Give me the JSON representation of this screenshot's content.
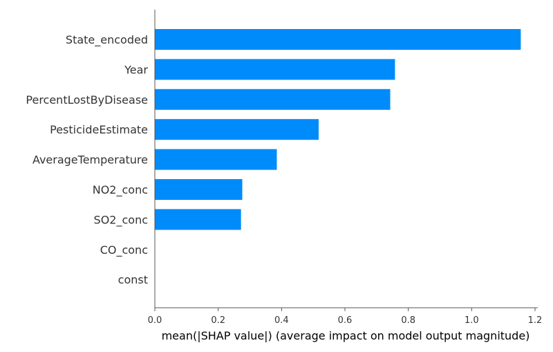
{
  "chart_data": {
    "type": "bar",
    "orientation": "horizontal",
    "title": "",
    "xlabel": "mean(|SHAP value|) (average impact on model output magnitude)",
    "ylabel": "",
    "xlim": [
      0,
      1.2
    ],
    "xticks": [
      "0.0",
      "0.2",
      "0.4",
      "0.6",
      "0.8",
      "1.0",
      "1.2"
    ],
    "categories": [
      "State_encoded",
      "Year",
      "PercentLostByDisease",
      "PesticideEstimate",
      "AverageTemperature",
      "NO2_conc",
      "SO2_conc",
      "CO_conc",
      "const"
    ],
    "values": [
      1.155,
      0.758,
      0.743,
      0.517,
      0.385,
      0.276,
      0.272,
      0.0,
      0.0
    ],
    "bar_color": "#008bfb",
    "grid": false,
    "legend": "none"
  }
}
